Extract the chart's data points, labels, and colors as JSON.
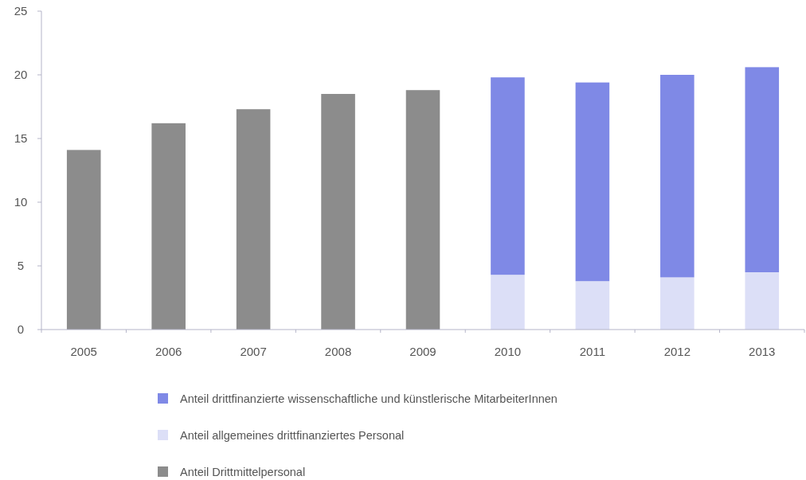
{
  "chart_data": {
    "type": "bar",
    "stacked": true,
    "categories": [
      "2005",
      "2006",
      "2007",
      "2008",
      "2009",
      "2010",
      "2011",
      "2012",
      "2013"
    ],
    "series": [
      {
        "name": "Anteil Drittmittelpersonal",
        "color": "#8c8c8c",
        "values": [
          14.1,
          16.2,
          17.3,
          18.5,
          18.8,
          null,
          null,
          null,
          null
        ]
      },
      {
        "name": "Anteil allgemeines drittfinanziertes Personal",
        "color": "#dcdff7",
        "values": [
          null,
          null,
          null,
          null,
          null,
          4.3,
          3.8,
          4.1,
          4.5
        ]
      },
      {
        "name": "Anteil drittfinanzierte wissenschaftliche und künstlerische MitarbeiterInnen",
        "color": "#7f89e6",
        "values": [
          null,
          null,
          null,
          null,
          null,
          15.5,
          15.6,
          15.9,
          16.1
        ]
      }
    ],
    "ylim": [
      0,
      25
    ],
    "yticks": [
      0,
      5,
      10,
      15,
      20,
      25
    ],
    "legend": "bottom"
  }
}
